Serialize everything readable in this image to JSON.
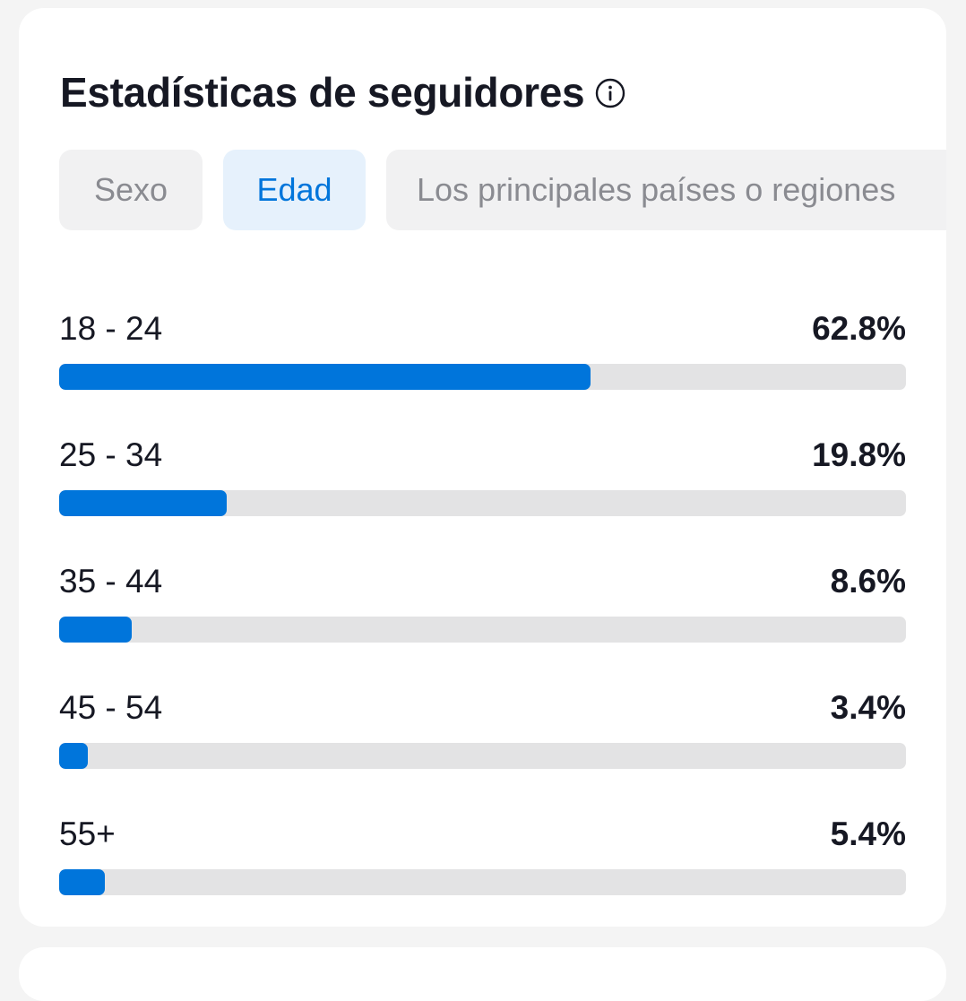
{
  "card": {
    "title": "Estadísticas de seguidores",
    "info_icon": "info-circle-icon"
  },
  "tabs": [
    {
      "label": "Sexo",
      "active": false
    },
    {
      "label": "Edad",
      "active": true
    },
    {
      "label": "Los principales países o regiones",
      "active": false
    }
  ],
  "age_distribution": [
    {
      "label": "18 - 24",
      "value_label": "62.8%",
      "value": 62.8
    },
    {
      "label": "25 - 34",
      "value_label": "19.8%",
      "value": 19.8
    },
    {
      "label": "35 - 44",
      "value_label": "8.6%",
      "value": 8.6
    },
    {
      "label": "45 - 54",
      "value_label": "3.4%",
      "value": 3.4
    },
    {
      "label": "55+",
      "value_label": "5.4%",
      "value": 5.4
    }
  ],
  "colors": {
    "accent": "#0075db",
    "track": "#e3e3e4",
    "active_tab_bg": "#e6f1fc",
    "inactive_tab_bg": "#f1f1f2",
    "text": "#161823",
    "muted_text": "#8a8b91"
  }
}
